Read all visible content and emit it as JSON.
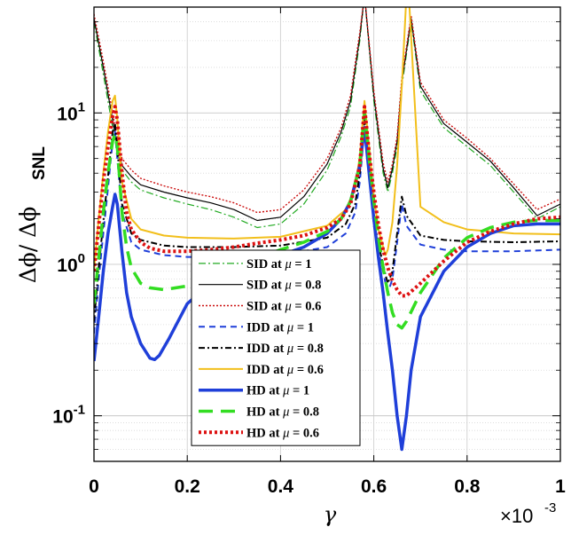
{
  "chart_data": {
    "type": "line",
    "title": "",
    "xlabel": "γ",
    "x_multiplier": {
      "base": "×10",
      "exponent": "-3"
    },
    "ylabel": {
      "main": "Δϕ/ Δϕ",
      "subscript": "SNL"
    },
    "xlim": [
      0,
      1
    ],
    "ylim": [
      0.05,
      50
    ],
    "yscale": "log",
    "grid": true,
    "legend_position": "bottom-center",
    "x_ticks": [
      {
        "value": 0,
        "label": "0"
      },
      {
        "value": 0.2,
        "label": "0.2"
      },
      {
        "value": 0.4,
        "label": "0.4"
      },
      {
        "value": 0.6,
        "label": "0.6"
      },
      {
        "value": 0.8,
        "label": "0.8"
      },
      {
        "value": 1,
        "label": "1"
      }
    ],
    "y_ticks": [
      {
        "value": 0.1,
        "base": "10",
        "exponent": "-1"
      },
      {
        "value": 1,
        "base": "10",
        "exponent": "0"
      },
      {
        "value": 10,
        "base": "10",
        "exponent": "1"
      }
    ],
    "series": [
      {
        "name": "SID at μ = 1",
        "label_prefix": "SID at ",
        "label_mu": "μ",
        "label_suffix": " = 1",
        "color": "#22aa22",
        "dash": "8 3 2 3",
        "width": 1.2,
        "x": [
          0,
          0.02,
          0.04,
          0.05,
          0.06,
          0.08,
          0.1,
          0.15,
          0.2,
          0.25,
          0.3,
          0.35,
          0.4,
          0.45,
          0.5,
          0.53,
          0.55,
          0.57,
          0.58,
          0.6,
          0.62,
          0.63,
          0.64,
          0.65,
          0.66,
          0.68,
          0.7,
          0.75,
          0.8,
          0.85,
          0.9,
          0.95,
          1.0
        ],
        "y": [
          40,
          18,
          8,
          5.5,
          4.2,
          3.5,
          3.1,
          2.75,
          2.5,
          2.3,
          2.05,
          1.75,
          1.85,
          2.5,
          4.2,
          7,
          11,
          30,
          60,
          12,
          4,
          3,
          4,
          6,
          15,
          40,
          14,
          8,
          6,
          4.5,
          3,
          2,
          2.4
        ]
      },
      {
        "name": "SID at μ = 0.8",
        "label_prefix": "SID at ",
        "label_mu": "μ",
        "label_suffix": " = 0.8",
        "color": "#000000",
        "dash": "",
        "width": 1.2,
        "x": [
          0,
          0.02,
          0.04,
          0.05,
          0.06,
          0.08,
          0.1,
          0.15,
          0.2,
          0.25,
          0.3,
          0.35,
          0.4,
          0.45,
          0.5,
          0.53,
          0.55,
          0.57,
          0.58,
          0.6,
          0.62,
          0.63,
          0.64,
          0.65,
          0.66,
          0.68,
          0.7,
          0.75,
          0.8,
          0.85,
          0.9,
          0.95,
          1.0
        ],
        "y": [
          42,
          20,
          9,
          6,
          4.5,
          3.8,
          3.35,
          3,
          2.75,
          2.55,
          2.3,
          1.95,
          2.05,
          2.8,
          4.6,
          7.5,
          12,
          32,
          60,
          13,
          4.3,
          3.2,
          4.3,
          6.5,
          16,
          42,
          15,
          8.5,
          6.4,
          4.8,
          3.2,
          2.1,
          2.5
        ]
      },
      {
        "name": "SID at μ = 0.6",
        "label_prefix": "SID at ",
        "label_mu": "μ",
        "label_suffix": " = 0.6",
        "color": "#cc1111",
        "dash": "2 2",
        "width": 1.4,
        "x": [
          0,
          0.02,
          0.04,
          0.05,
          0.06,
          0.08,
          0.1,
          0.15,
          0.2,
          0.25,
          0.3,
          0.35,
          0.4,
          0.45,
          0.5,
          0.53,
          0.55,
          0.57,
          0.58,
          0.6,
          0.62,
          0.63,
          0.64,
          0.65,
          0.66,
          0.68,
          0.7,
          0.75,
          0.8,
          0.85,
          0.9,
          0.95,
          1.0
        ],
        "y": [
          45,
          22,
          10,
          6.8,
          5,
          4.2,
          3.7,
          3.3,
          3,
          2.8,
          2.55,
          2.2,
          2.3,
          3.1,
          5,
          8,
          13,
          34,
          60,
          14,
          4.7,
          3.5,
          4.6,
          7,
          17,
          44,
          16,
          9,
          6.8,
          5,
          3.4,
          2.3,
          2.7
        ]
      },
      {
        "name": "IDD at μ = 1",
        "label_prefix": "IDD at ",
        "label_mu": "μ",
        "label_suffix": " = 1",
        "color": "#1f3fd9",
        "dash": "7 5",
        "width": 2,
        "x": [
          0,
          0.01,
          0.02,
          0.03,
          0.04,
          0.045,
          0.05,
          0.06,
          0.08,
          0.1,
          0.15,
          0.2,
          0.3,
          0.4,
          0.5,
          0.54,
          0.56,
          0.57,
          0.58,
          0.59,
          0.6,
          0.61,
          0.62,
          0.625,
          0.63,
          0.64,
          0.65,
          0.66,
          0.67,
          0.7,
          0.75,
          0.8,
          0.9,
          1.0
        ],
        "y": [
          0.35,
          0.8,
          1.6,
          3.2,
          6.5,
          7.5,
          5,
          2.2,
          1.4,
          1.25,
          1.15,
          1.12,
          1.12,
          1.15,
          1.3,
          1.6,
          2.2,
          3.5,
          8,
          4,
          1.8,
          1.2,
          0.9,
          0.75,
          0.65,
          0.8,
          1.4,
          2.5,
          1.8,
          1.35,
          1.25,
          1.22,
          1.22,
          1.25
        ]
      },
      {
        "name": "IDD at μ = 0.8",
        "label_prefix": "IDD at ",
        "label_mu": "μ",
        "label_suffix": " = 0.8",
        "color": "#000000",
        "dash": "7 3 2 3",
        "width": 2,
        "x": [
          0,
          0.01,
          0.02,
          0.03,
          0.04,
          0.045,
          0.05,
          0.06,
          0.08,
          0.1,
          0.15,
          0.2,
          0.3,
          0.4,
          0.5,
          0.54,
          0.56,
          0.57,
          0.58,
          0.59,
          0.6,
          0.61,
          0.62,
          0.625,
          0.63,
          0.64,
          0.65,
          0.66,
          0.67,
          0.7,
          0.75,
          0.8,
          0.9,
          1.0
        ],
        "y": [
          0.42,
          0.95,
          1.9,
          3.8,
          7.5,
          8.5,
          5.8,
          2.5,
          1.6,
          1.45,
          1.33,
          1.3,
          1.3,
          1.33,
          1.5,
          1.85,
          2.5,
          4,
          9,
          4.5,
          2,
          1.35,
          1,
          0.85,
          0.75,
          0.9,
          1.6,
          2.8,
          2.1,
          1.55,
          1.45,
          1.42,
          1.4,
          1.42
        ]
      },
      {
        "name": "IDD at μ = 0.6",
        "label_prefix": "IDD at ",
        "label_mu": "μ",
        "label_suffix": " = 0.6",
        "color": "#f2bf1b",
        "dash": "",
        "width": 2,
        "x": [
          0,
          0.01,
          0.02,
          0.03,
          0.04,
          0.045,
          0.05,
          0.06,
          0.08,
          0.1,
          0.15,
          0.2,
          0.3,
          0.4,
          0.5,
          0.54,
          0.56,
          0.57,
          0.58,
          0.59,
          0.6,
          0.61,
          0.62,
          0.625,
          0.63,
          0.64,
          0.65,
          0.66,
          0.67,
          0.675,
          0.7,
          0.75,
          0.8,
          0.9,
          1.0
        ],
        "y": [
          0.9,
          2,
          4,
          7.5,
          12,
          13,
          9,
          3.5,
          2,
          1.7,
          1.55,
          1.5,
          1.48,
          1.52,
          1.8,
          2.3,
          3.2,
          5.2,
          12,
          6,
          2.8,
          1.7,
          1.3,
          1.15,
          1.25,
          1.9,
          4.5,
          15,
          60,
          60,
          2.4,
          1.9,
          1.7,
          1.6,
          1.58
        ]
      },
      {
        "name": "HD at μ = 1",
        "label_prefix": "HD at ",
        "label_mu": "μ",
        "label_suffix": " = 1",
        "color": "#1f3fd9",
        "dash": "",
        "width": 3.5,
        "x": [
          0,
          0.01,
          0.02,
          0.03,
          0.04,
          0.045,
          0.05,
          0.06,
          0.07,
          0.08,
          0.1,
          0.12,
          0.13,
          0.14,
          0.16,
          0.2,
          0.25,
          0.3,
          0.35,
          0.4,
          0.45,
          0.5,
          0.53,
          0.55,
          0.57,
          0.58,
          0.59,
          0.6,
          0.61,
          0.62,
          0.63,
          0.64,
          0.65,
          0.66,
          0.67,
          0.68,
          0.7,
          0.75,
          0.8,
          0.85,
          0.9,
          0.95,
          1.0
        ],
        "y": [
          0.23,
          0.45,
          0.9,
          1.6,
          2.4,
          2.9,
          2.5,
          1.2,
          0.65,
          0.45,
          0.3,
          0.24,
          0.235,
          0.25,
          0.32,
          0.55,
          0.75,
          0.92,
          1.05,
          1.15,
          1.3,
          1.6,
          2,
          2.6,
          4.5,
          8,
          4,
          2,
          1.1,
          0.65,
          0.35,
          0.2,
          0.1,
          0.06,
          0.1,
          0.2,
          0.45,
          0.9,
          1.3,
          1.6,
          1.8,
          1.85,
          1.85
        ]
      },
      {
        "name": "HD at μ = 0.8",
        "label_prefix": "HD at ",
        "label_mu": "μ",
        "label_suffix": " = 0.8",
        "color": "#33dd22",
        "dash": "16 9",
        "width": 3.5,
        "x": [
          0,
          0.01,
          0.02,
          0.03,
          0.04,
          0.045,
          0.05,
          0.06,
          0.07,
          0.08,
          0.1,
          0.12,
          0.15,
          0.2,
          0.25,
          0.3,
          0.35,
          0.4,
          0.45,
          0.5,
          0.53,
          0.55,
          0.57,
          0.58,
          0.59,
          0.6,
          0.61,
          0.62,
          0.63,
          0.64,
          0.65,
          0.66,
          0.67,
          0.7,
          0.75,
          0.8,
          0.85,
          0.9,
          0.95,
          1.0
        ],
        "y": [
          0.55,
          1.1,
          2.2,
          4,
          6.5,
          7.2,
          6,
          2.2,
          1.3,
          0.95,
          0.75,
          0.7,
          0.68,
          0.72,
          0.82,
          0.95,
          1.1,
          1.25,
          1.4,
          1.65,
          2,
          2.6,
          4.5,
          10,
          5,
          2.6,
          1.5,
          0.95,
          0.65,
          0.48,
          0.4,
          0.38,
          0.42,
          0.65,
          1.1,
          1.5,
          1.75,
          1.9,
          1.95,
          1.95
        ]
      },
      {
        "name": "HD at μ = 0.6",
        "label_prefix": "HD at ",
        "label_mu": "μ",
        "label_suffix": " = 0.6",
        "color": "#dd1111",
        "dash": "3 3",
        "width": 4,
        "x": [
          0,
          0.01,
          0.02,
          0.03,
          0.04,
          0.045,
          0.05,
          0.06,
          0.07,
          0.08,
          0.1,
          0.12,
          0.15,
          0.2,
          0.25,
          0.3,
          0.35,
          0.4,
          0.45,
          0.5,
          0.53,
          0.55,
          0.57,
          0.58,
          0.59,
          0.6,
          0.61,
          0.62,
          0.63,
          0.64,
          0.65,
          0.66,
          0.67,
          0.7,
          0.75,
          0.8,
          0.85,
          0.9,
          0.95,
          1.0
        ],
        "y": [
          0.9,
          1.8,
          3.5,
          6,
          9.5,
          11,
          9,
          4,
          2.2,
          1.7,
          1.4,
          1.28,
          1.22,
          1.22,
          1.25,
          1.3,
          1.38,
          1.45,
          1.55,
          1.75,
          2,
          2.5,
          4.5,
          11,
          5.5,
          3,
          1.8,
          1.25,
          0.95,
          0.78,
          0.68,
          0.62,
          0.62,
          0.75,
          1.05,
          1.4,
          1.65,
          1.85,
          2,
          2.05
        ]
      }
    ]
  }
}
